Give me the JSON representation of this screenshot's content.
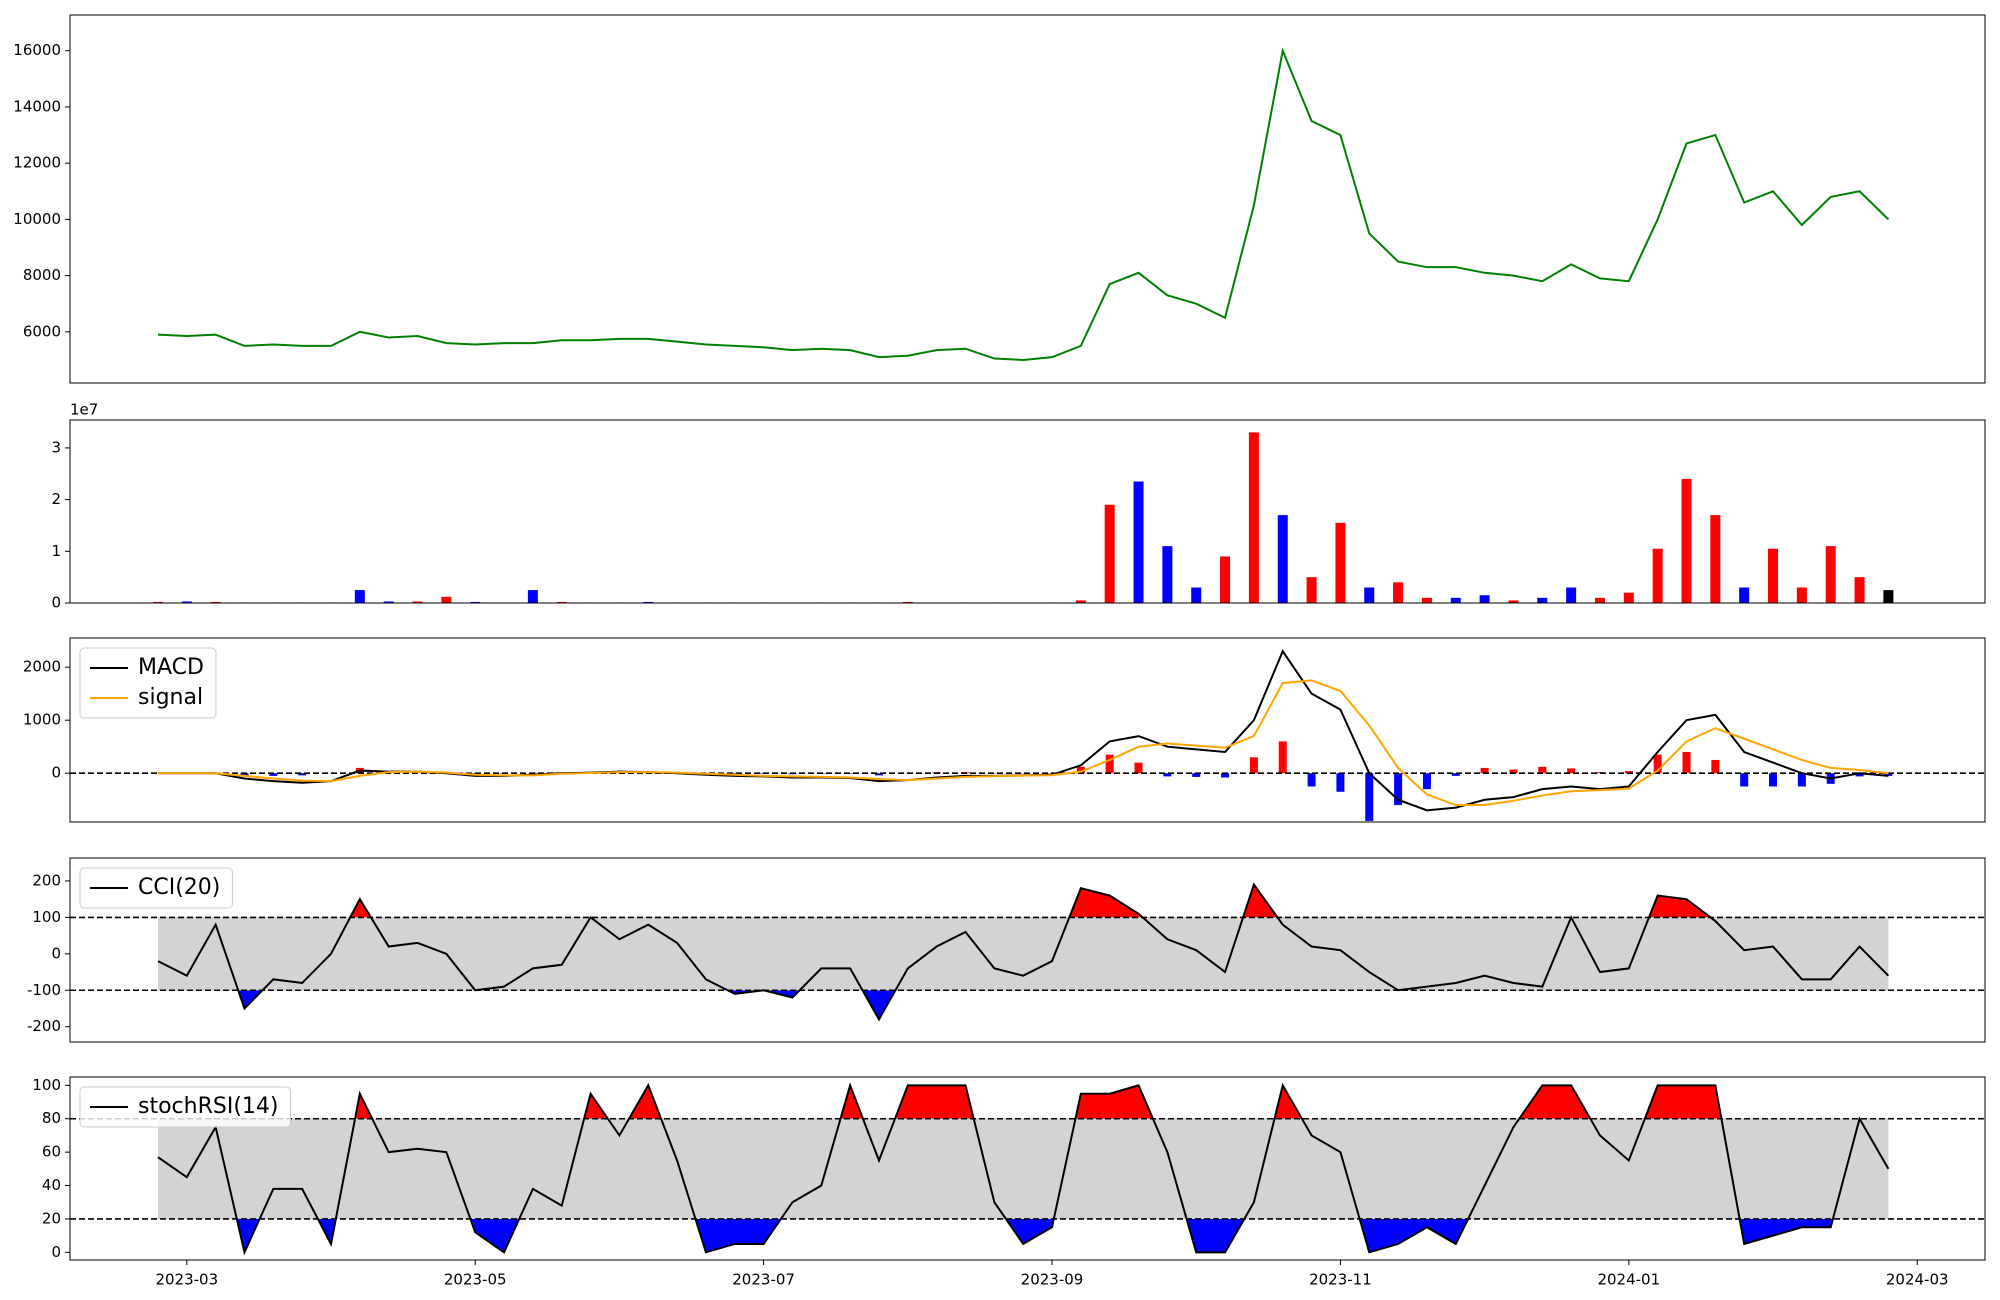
{
  "chart_data": [
    {
      "type": "line",
      "x": [
        1.8,
        2,
        2.2,
        2.4,
        2.6,
        2.8,
        3,
        3.2,
        3.4,
        3.6,
        3.8,
        4,
        4.2,
        4.4,
        4.6,
        4.8,
        5,
        5.2,
        5.4,
        5.6,
        5.8,
        6,
        6.2,
        6.4,
        6.6,
        6.8,
        7,
        7.2,
        7.4,
        7.6,
        7.8,
        8,
        8.2,
        8.4,
        8.6,
        8.8,
        9,
        9.2,
        9.4,
        9.6,
        9.8,
        10,
        10.2,
        10.4,
        10.6,
        10.8,
        11,
        11.2,
        11.4,
        11.6,
        11.8,
        12,
        12.2,
        12.4,
        12.6,
        12.8,
        13,
        13.2,
        13.4,
        13.6,
        13.8
      ],
      "series": [
        {
          "color": "green",
          "values": [
            5900,
            5850,
            5900,
            5500,
            5550,
            5500,
            5500,
            6000,
            5800,
            5850,
            5600,
            5550,
            5600,
            5600,
            5700,
            5700,
            5750,
            5750,
            5650,
            5550,
            5500,
            5450,
            5350,
            5400,
            5350,
            5100,
            5150,
            5350,
            5400,
            5050,
            5000,
            5100,
            5500,
            7700,
            8100,
            7300,
            7000,
            6500,
            10500,
            16000,
            13500,
            13000,
            9500,
            8500,
            8300,
            8300,
            8100,
            8000,
            7800,
            8400,
            7900,
            7800,
            10000,
            12700,
            13000,
            10600,
            11000,
            9800,
            10800,
            11000,
            10000
          ]
        }
      ],
      "xlim": [
        1.19,
        14.47
      ],
      "ylim": [
        4180,
        17270
      ],
      "yticks": [
        6000,
        8000,
        10000,
        12000,
        14000,
        16000
      ]
    },
    {
      "type": "bar",
      "x": [
        1.8,
        2,
        2.2,
        2.4,
        2.6,
        2.8,
        3,
        3.2,
        3.4,
        3.6,
        3.8,
        4,
        4.2,
        4.4,
        4.6,
        4.8,
        5,
        5.2,
        5.4,
        5.6,
        5.8,
        6,
        6.2,
        6.4,
        6.6,
        6.8,
        7,
        7.2,
        7.4,
        7.6,
        7.8,
        8,
        8.2,
        8.4,
        8.6,
        8.8,
        9,
        9.2,
        9.4,
        9.6,
        9.8,
        10,
        10.2,
        10.4,
        10.6,
        10.8,
        11,
        11.2,
        11.4,
        11.6,
        11.8,
        12,
        12.2,
        12.4,
        12.6,
        12.8,
        13,
        13.2,
        13.4,
        13.6,
        13.8
      ],
      "values": [
        200000,
        300000,
        200000,
        100000,
        100000,
        100000,
        100000,
        2500000,
        300000,
        300000,
        1200000,
        200000,
        100000,
        2500000,
        200000,
        100000,
        100000,
        200000,
        100000,
        100000,
        100000,
        100000,
        100000,
        100000,
        100000,
        100000,
        200000,
        100000,
        100000,
        100000,
        100000,
        100000,
        500000,
        19000000,
        23500000,
        11000000,
        3000000,
        9000000,
        33000000,
        17000000,
        5000000,
        15500000,
        3000000,
        4000000,
        1000000,
        1000000,
        1500000,
        500000,
        1000000,
        3000000,
        1000000,
        2000000,
        10500000,
        24000000,
        17000000,
        3000000,
        10500000,
        3000000,
        11000000,
        5000000,
        2500000
      ],
      "colors": [
        "red",
        "blue",
        "red",
        "blue",
        "red",
        "blue",
        "red",
        "blue",
        "blue",
        "red",
        "red",
        "blue",
        "red",
        "blue",
        "red",
        "blue",
        "red",
        "blue",
        "red",
        "blue",
        "red",
        "blue",
        "red",
        "blue",
        "red",
        "blue",
        "red",
        "blue",
        "red",
        "blue",
        "red",
        "blue",
        "red",
        "red",
        "blue",
        "blue",
        "blue",
        "red",
        "red",
        "blue",
        "red",
        "red",
        "blue",
        "red",
        "red",
        "blue",
        "blue",
        "red",
        "blue",
        "blue",
        "red",
        "red",
        "red",
        "red",
        "red",
        "blue",
        "red",
        "red",
        "red",
        "red",
        "black"
      ],
      "offset_label": "1e7",
      "xlim": [
        1.19,
        14.47
      ],
      "ylim": [
        0,
        35400000
      ],
      "yticks": [
        {
          "value": 0,
          "label": "0"
        },
        {
          "value": 10000000,
          "label": "1"
        },
        {
          "value": 20000000,
          "label": "2"
        },
        {
          "value": 30000000,
          "label": "3"
        }
      ]
    },
    {
      "type": "line",
      "x": [
        1.8,
        2,
        2.2,
        2.4,
        2.6,
        2.8,
        3,
        3.2,
        3.4,
        3.6,
        3.8,
        4,
        4.2,
        4.4,
        4.6,
        4.8,
        5,
        5.2,
        5.4,
        5.6,
        5.8,
        6,
        6.2,
        6.4,
        6.6,
        6.8,
        7,
        7.2,
        7.4,
        7.6,
        7.8,
        8,
        8.2,
        8.4,
        8.6,
        8.8,
        9,
        9.2,
        9.4,
        9.6,
        9.8,
        10,
        10.2,
        10.4,
        10.6,
        10.8,
        11,
        11.2,
        11.4,
        11.6,
        11.8,
        12,
        12.2,
        12.4,
        12.6,
        12.8,
        13,
        13.2,
        13.4,
        13.6,
        13.8
      ],
      "series": [
        {
          "name": "MACD",
          "color": "black",
          "values": [
            0,
            0,
            0,
            -100,
            -150,
            -180,
            -150,
            50,
            30,
            30,
            0,
            -50,
            -50,
            -30,
            0,
            10,
            30,
            20,
            0,
            -30,
            -50,
            -60,
            -80,
            -80,
            -90,
            -150,
            -130,
            -80,
            -50,
            -50,
            -40,
            -30,
            150,
            600,
            700,
            500,
            450,
            400,
            1000,
            2300,
            1500,
            1200,
            0,
            -500,
            -700,
            -650,
            -500,
            -450,
            -300,
            -250,
            -300,
            -250,
            400,
            1000,
            1100,
            400,
            200,
            0,
            -100,
            0,
            -50
          ]
        },
        {
          "name": "signal",
          "color": "orange",
          "values": [
            0,
            0,
            0,
            -50,
            -100,
            -140,
            -150,
            -50,
            20,
            30,
            10,
            -30,
            -40,
            -40,
            -10,
            5,
            20,
            20,
            10,
            -10,
            -30,
            -50,
            -60,
            -70,
            -80,
            -110,
            -130,
            -100,
            -70,
            -55,
            -45,
            -35,
            30,
            250,
            500,
            560,
            520,
            480,
            700,
            1700,
            1750,
            1550,
            900,
            100,
            -400,
            -600,
            -600,
            -520,
            -420,
            -340,
            -320,
            -290,
            50,
            600,
            850,
            650,
            450,
            250,
            100,
            60,
            0
          ]
        }
      ],
      "histogram": {
        "values": [
          0,
          0,
          0,
          -50,
          -50,
          -40,
          0,
          100,
          10,
          0,
          -10,
          -20,
          -10,
          10,
          10,
          5,
          10,
          0,
          -10,
          -20,
          -20,
          -10,
          -20,
          -10,
          -10,
          -40,
          0,
          20,
          20,
          5,
          5,
          5,
          120,
          350,
          200,
          -60,
          -70,
          -80,
          300,
          600,
          -250,
          -350,
          -900,
          -600,
          -300,
          -50,
          100,
          70,
          120,
          90,
          20,
          40,
          350,
          400,
          250,
          -250,
          -250,
          -250,
          -200,
          -60,
          -50
        ],
        "positive_color": "red",
        "negative_color": "blue"
      },
      "reference_lines": [
        0
      ],
      "legend": "upper left",
      "xlim": [
        1.19,
        14.47
      ],
      "ylim": [
        -920,
        2550
      ],
      "yticks": [
        0,
        1000,
        2000
      ]
    },
    {
      "type": "line",
      "x": [
        1.8,
        2,
        2.2,
        2.4,
        2.6,
        2.8,
        3,
        3.2,
        3.4,
        3.6,
        3.8,
        4,
        4.2,
        4.4,
        4.6,
        4.8,
        5,
        5.2,
        5.4,
        5.6,
        5.8,
        6,
        6.2,
        6.4,
        6.6,
        6.8,
        7,
        7.2,
        7.4,
        7.6,
        7.8,
        8,
        8.2,
        8.4,
        8.6,
        8.8,
        9,
        9.2,
        9.4,
        9.6,
        9.8,
        10,
        10.2,
        10.4,
        10.6,
        10.8,
        11,
        11.2,
        11.4,
        11.6,
        11.8,
        12,
        12.2,
        12.4,
        12.6,
        12.8,
        13,
        13.2,
        13.4,
        13.6,
        13.8
      ],
      "series": [
        {
          "name": "CCI(20)",
          "color": "black",
          "values": [
            -20,
            -60,
            80,
            -150,
            -70,
            -80,
            0,
            150,
            20,
            30,
            0,
            -100,
            -90,
            -40,
            -30,
            100,
            40,
            80,
            30,
            -70,
            -110,
            -100,
            -120,
            -40,
            -40,
            -180,
            -40,
            20,
            60,
            -40,
            -60,
            -20,
            180,
            160,
            110,
            40,
            10,
            -50,
            190,
            80,
            20,
            10,
            -50,
            -100,
            -90,
            -80,
            -60,
            -80,
            -90,
            100,
            -50,
            -40,
            160,
            150,
            90,
            10,
            20,
            -70,
            -70,
            20,
            -60
          ]
        }
      ],
      "bands": [
        -100,
        100
      ],
      "band_fill": "lightgray",
      "above_color": "red",
      "below_color": "blue",
      "legend": "upper left",
      "xlim": [
        1.19,
        14.47
      ],
      "ylim": [
        -242,
        263
      ],
      "yticks": [
        -200,
        -100,
        0,
        100,
        200
      ]
    },
    {
      "type": "line",
      "x": [
        1.8,
        2,
        2.2,
        2.4,
        2.6,
        2.8,
        3,
        3.2,
        3.4,
        3.6,
        3.8,
        4,
        4.2,
        4.4,
        4.6,
        4.8,
        5,
        5.2,
        5.4,
        5.6,
        5.8,
        6,
        6.2,
        6.4,
        6.6,
        6.8,
        7,
        7.2,
        7.4,
        7.6,
        7.8,
        8,
        8.2,
        8.4,
        8.6,
        8.8,
        9,
        9.2,
        9.4,
        9.6,
        9.8,
        10,
        10.2,
        10.4,
        10.6,
        10.8,
        11,
        11.2,
        11.4,
        11.6,
        11.8,
        12,
        12.2,
        12.4,
        12.6,
        12.8,
        13,
        13.2,
        13.4,
        13.6,
        13.8
      ],
      "series": [
        {
          "name": "stochRSI(14)",
          "color": "black",
          "values": [
            57,
            45,
            75,
            0,
            38,
            38,
            5,
            95,
            60,
            62,
            60,
            12,
            0,
            38,
            28,
            95,
            70,
            100,
            55,
            0,
            5,
            5,
            30,
            40,
            100,
            55,
            100,
            100,
            100,
            30,
            5,
            15,
            95,
            95,
            100,
            60,
            0,
            0,
            30,
            100,
            70,
            60,
            0,
            5,
            15,
            5,
            40,
            75,
            100,
            100,
            70,
            55,
            100,
            100,
            100,
            5,
            10,
            15,
            15,
            80,
            50
          ]
        }
      ],
      "bands": [
        20,
        80
      ],
      "band_fill": "lightgray",
      "above_color": "red",
      "below_color": "blue",
      "legend": "upper left",
      "xlim": [
        1.19,
        14.47
      ],
      "ylim": [
        -4.6,
        105
      ],
      "yticks": [
        0,
        20,
        40,
        60,
        80,
        100
      ],
      "xticks": [
        {
          "value": 2,
          "label": "2023-03"
        },
        {
          "value": 4,
          "label": "2023-05"
        },
        {
          "value": 6,
          "label": "2023-07"
        },
        {
          "value": 8,
          "label": "2023-09"
        },
        {
          "value": 10,
          "label": "2023-11"
        },
        {
          "value": 12,
          "label": "2024-01"
        },
        {
          "value": 14,
          "label": "2024-03"
        }
      ]
    }
  ]
}
